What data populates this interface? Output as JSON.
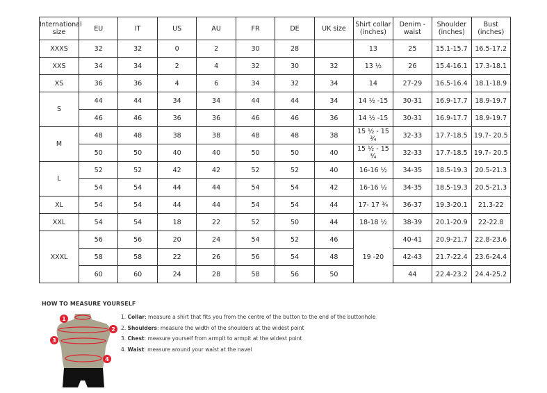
{
  "headers": [
    "International size",
    "EU",
    "IT",
    "US",
    "AU",
    "FR",
    "DE",
    "UK size",
    "Shirt collar (inches)",
    "Denim - waist",
    "Shoulder (inches)",
    "Bust (inches)"
  ],
  "groups": [
    {
      "size": "XXXS",
      "rows": [
        [
          "32",
          "32",
          "0",
          "2",
          "30",
          "28",
          "",
          "13",
          "25",
          "15.1-15.7",
          "16.5-17.2"
        ]
      ]
    },
    {
      "size": "XXS",
      "rows": [
        [
          "34",
          "34",
          "2",
          "4",
          "32",
          "30",
          "32",
          "13 ½",
          "26",
          "15.4-16.1",
          "17.3-18.1"
        ]
      ]
    },
    {
      "size": "XS",
      "rows": [
        [
          "36",
          "36",
          "4",
          "6",
          "34",
          "32",
          "34",
          "14",
          "27-29",
          "16.5-16.4",
          "18.1-18.9"
        ]
      ]
    },
    {
      "size": "S",
      "rows": [
        [
          "44",
          "44",
          "34",
          "34",
          "44",
          "44",
          "34",
          "14 ½ -15",
          "30-31",
          "16.9-17.7",
          "18.9-19.7"
        ],
        [
          "46",
          "46",
          "36",
          "36",
          "46",
          "46",
          "36",
          "14 ½ -15",
          "30-31",
          "16.9-17.7",
          "18.9-19.7"
        ]
      ]
    },
    {
      "size": "M",
      "rows": [
        [
          "48",
          "48",
          "38",
          "38",
          "48",
          "48",
          "38",
          "15 ½ - 15 ¾",
          "32-33",
          "17.7-18.5",
          "19.7- 20.5"
        ],
        [
          "50",
          "50",
          "40",
          "40",
          "50",
          "50",
          "40",
          "15 ½ - 15 ¾",
          "32-33",
          "17.7-18.5",
          "19.7- 20.5"
        ]
      ]
    },
    {
      "size": "L",
      "rows": [
        [
          "52",
          "52",
          "42",
          "42",
          "52",
          "52",
          "40",
          "16-16 ½",
          "34-35",
          "18.5-19.3",
          "20.5-21.3"
        ],
        [
          "54",
          "54",
          "44",
          "44",
          "54",
          "54",
          "42",
          "16-16 ½",
          "34-35",
          "18.5-19.3",
          "20.5-21.3"
        ]
      ]
    },
    {
      "size": "XL",
      "rows": [
        [
          "54",
          "54",
          "44",
          "44",
          "54",
          "54",
          "44",
          "17- 17 ¾",
          "36-37",
          "19.3-20.1",
          "21.3-22"
        ]
      ]
    },
    {
      "size": "XXL",
      "rows": [
        [
          "54",
          "54",
          "18",
          "22",
          "52",
          "50",
          "44",
          "18-18 ½",
          "38-39",
          "20.1-20.9",
          "22-22.8"
        ]
      ]
    },
    {
      "size": "XXXL",
      "merged_collar": "19 -20",
      "rows": [
        [
          "56",
          "56",
          "20",
          "24",
          "54",
          "52",
          "46",
          null,
          "40-41",
          "20.9-21.7",
          "22.8-23.6"
        ],
        [
          "58",
          "58",
          "22",
          "26",
          "56",
          "54",
          "48",
          null,
          "42-43",
          "21.7-22.4",
          "23.6-24.4"
        ],
        [
          "60",
          "60",
          "24",
          "28",
          "58",
          "56",
          "50",
          null,
          "44",
          "22.4-23.2",
          "24.4-25.2"
        ]
      ]
    }
  ],
  "guide": {
    "title": "HOW TO MEASURE YOURSELF",
    "steps": [
      {
        "num": "1.",
        "term": "Collar",
        "text": ": measure a shirt that fits you from the centre of the button to the end of the buttonhole"
      },
      {
        "num": "2.",
        "term": "Shoulders",
        "text": ": measure the width of the shoulders at the widest point"
      },
      {
        "num": "3.",
        "term": "Chest",
        "text": ": measure yourself from armpit to armpit at the widest point"
      },
      {
        "num": "4.",
        "term": "Waist",
        "text": ": measure around your waist at the navel"
      }
    ],
    "markers": [
      "1",
      "2",
      "3",
      "4"
    ],
    "colors": {
      "accent": "#e0202e",
      "torso": "#a9a58f",
      "shorts": "#111111"
    }
  }
}
